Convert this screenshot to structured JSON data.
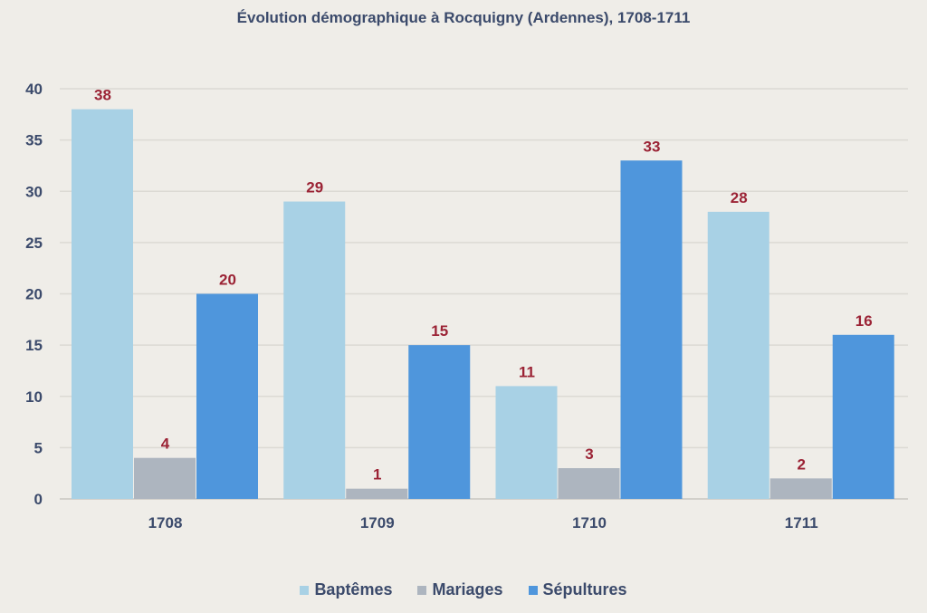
{
  "chart_data": {
    "type": "bar",
    "title": "Évolution démographique à Rocquigny (Ardennes), 1708-1711",
    "xlabel": "",
    "ylabel": "",
    "categories": [
      "1708",
      "1709",
      "1710",
      "1711"
    ],
    "series": [
      {
        "name": "Baptêmes",
        "values": [
          38,
          29,
          11,
          28
        ],
        "color": "#a8d1e5"
      },
      {
        "name": "Mariages",
        "values": [
          4,
          1,
          3,
          2
        ],
        "color": "#adb5bf"
      },
      {
        "name": "Sépultures",
        "values": [
          20,
          15,
          33,
          16
        ],
        "color": "#4f96dc"
      }
    ],
    "ylim": [
      0,
      40
    ],
    "yticks": [
      0,
      5,
      10,
      15,
      20,
      25,
      30,
      35,
      40
    ],
    "grid": true,
    "legend_position": "bottom",
    "data_label_color": "#9b2335",
    "axis_text_color": "#3b4a6b"
  }
}
